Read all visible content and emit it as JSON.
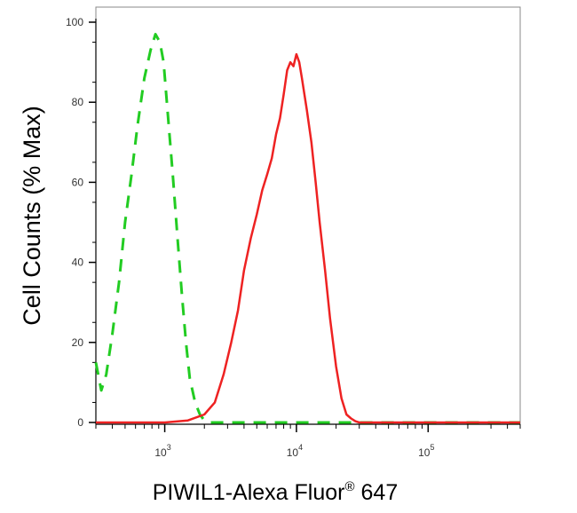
{
  "chart_data": {
    "type": "line",
    "title": "",
    "xlabel": "PIWIL1-Alexa Fluor",
    "xlabel_superscript": "®",
    "xlabel_suffix": " 647",
    "ylabel": "Cell Counts (% Max)",
    "x_scale": "log",
    "xlim": [
      300,
      500000
    ],
    "ylim": [
      0,
      100
    ],
    "x_tick_labels": [
      {
        "base": "10",
        "exp": "3",
        "value": 1000
      },
      {
        "base": "10",
        "exp": "4",
        "value": 10000
      },
      {
        "base": "10",
        "exp": "5",
        "value": 100000
      }
    ],
    "y_ticks": [
      0,
      20,
      40,
      60,
      80,
      100
    ],
    "grid": false,
    "legend": "none",
    "series": [
      {
        "color": "#22cc22",
        "style": "dashed",
        "x": [
          300,
          330,
          360,
          400,
          450,
          500,
          560,
          620,
          700,
          780,
          850,
          920,
          980,
          1050,
          1150,
          1250,
          1350,
          1450,
          1550,
          1700,
          1850,
          2000,
          2200,
          2500,
          3000,
          4000,
          6000,
          10000,
          20000,
          50000,
          100000,
          200000,
          500000
        ],
        "y": [
          15,
          8,
          12,
          22,
          35,
          50,
          62,
          74,
          86,
          93,
          97,
          95,
          90,
          78,
          62,
          46,
          32,
          20,
          11,
          5,
          2,
          0.5,
          0,
          0,
          0,
          0,
          0,
          0,
          0,
          0,
          0,
          0,
          0
        ]
      },
      {
        "color": "#ee2222",
        "style": "solid",
        "x": [
          300,
          1000,
          1500,
          2000,
          2400,
          2800,
          3200,
          3600,
          4000,
          4500,
          5000,
          5500,
          6000,
          6500,
          7000,
          7500,
          8000,
          8500,
          9000,
          9500,
          10000,
          10500,
          11000,
          11500,
          12000,
          13000,
          14000,
          15000,
          16500,
          18000,
          20000,
          22000,
          24000,
          26000,
          28000,
          30000,
          35000,
          50000,
          100000,
          200000,
          500000
        ],
        "y": [
          0,
          0,
          0.5,
          2,
          5,
          12,
          20,
          28,
          38,
          46,
          52,
          58,
          62,
          66,
          72,
          76,
          82,
          88,
          90,
          89,
          92,
          90,
          86,
          82,
          78,
          70,
          60,
          50,
          38,
          26,
          14,
          6,
          2,
          1,
          0.3,
          0,
          0,
          0,
          0,
          0,
          0
        ]
      }
    ]
  }
}
